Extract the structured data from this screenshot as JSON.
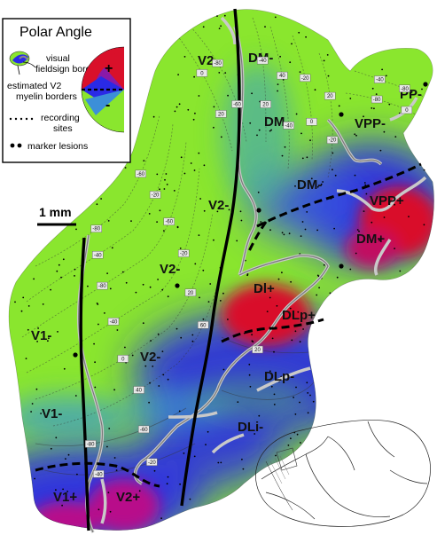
{
  "legend": {
    "title": "Polar Angle",
    "fieldsign_label_1": "visual",
    "fieldsign_label_2": "fieldsign border",
    "myelin_label_1": "estimated V2",
    "myelin_label_2": "myelin borders",
    "recording_label_1": "recording",
    "recording_label_2": "sites",
    "lesion_label": "marker lesions",
    "plus": "+",
    "minus": "-"
  },
  "scale_bar": {
    "label": "1 mm"
  },
  "areas": {
    "v2_top": "V2-",
    "dm_top": "DM-",
    "pp": "PP-",
    "dm_mid": "DM-",
    "vpp_minus": "VPP-",
    "dm_low": "DM-",
    "vpp_plus": "VPP+",
    "v2_mid": "V2-",
    "dm_plus": "DM+",
    "v2_center": "V2-",
    "dl_plus": "Dl+",
    "dlp_plus": "DLp+",
    "v1_upper": "V1-",
    "v2_lower": "V2-",
    "dlp_minus": "DLp-",
    "v1_lower": "V1-",
    "dli_minus": "DLi-",
    "v1_plus": "V1+",
    "v2_plus": "V2+"
  },
  "contour_labels": [
    "-80",
    "-60",
    "-40",
    "-20",
    "-80",
    "-60",
    "-40",
    "-20",
    "0",
    "20",
    "40",
    "60",
    "-80",
    "-60",
    "-40",
    "-20",
    "0",
    "20",
    "-80",
    "-60",
    "-40",
    "20",
    "40",
    "-40",
    "-20",
    "0",
    "20",
    "-20",
    "-40",
    "-80",
    "-80",
    "0",
    "20"
  ],
  "colors": {
    "green": "#8ae62e",
    "blue": "#2a2ae6",
    "red": "#d9102a",
    "magenta": "#b8108a"
  }
}
